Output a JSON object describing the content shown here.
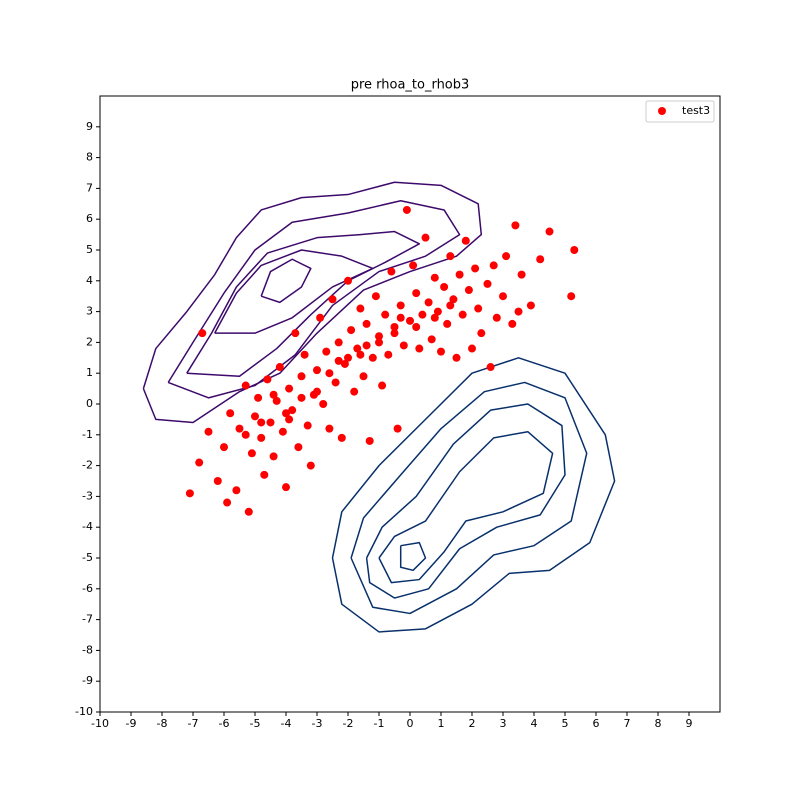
{
  "chart_data": {
    "type": "scatter",
    "title": "pre rhoa_to_rhob3",
    "xlim": [
      -10,
      10
    ],
    "ylim": [
      -10,
      10
    ],
    "xticks": [
      -10,
      -9,
      -8,
      -7,
      -6,
      -5,
      -4,
      -3,
      -2,
      -1,
      0,
      1,
      2,
      3,
      4,
      5,
      6,
      7,
      8,
      9
    ],
    "yticks": [
      -10,
      -9,
      -8,
      -7,
      -6,
      -5,
      -4,
      -3,
      -2,
      -1,
      0,
      1,
      2,
      3,
      4,
      5,
      6,
      7,
      8,
      9
    ],
    "legend": "upper right",
    "series": [
      {
        "name": "test3",
        "color": "#ff0000",
        "points": [
          [
            -7.1,
            -2.9
          ],
          [
            -6.8,
            -1.9
          ],
          [
            -6.5,
            -0.9
          ],
          [
            -6.2,
            -2.5
          ],
          [
            -6.0,
            -1.4
          ],
          [
            -5.9,
            -3.2
          ],
          [
            -5.8,
            -0.3
          ],
          [
            -5.6,
            -2.8
          ],
          [
            -5.5,
            -0.8
          ],
          [
            -5.3,
            0.6
          ],
          [
            -5.2,
            -3.5
          ],
          [
            -5.1,
            -1.6
          ],
          [
            -5.0,
            -0.4
          ],
          [
            -4.9,
            0.2
          ],
          [
            -4.8,
            -1.1
          ],
          [
            -4.7,
            -2.3
          ],
          [
            -4.6,
            0.8
          ],
          [
            -4.5,
            -0.6
          ],
          [
            -4.4,
            -1.7
          ],
          [
            -4.3,
            0.1
          ],
          [
            -4.2,
            1.2
          ],
          [
            -4.1,
            -0.9
          ],
          [
            -4.0,
            -2.7
          ],
          [
            -3.9,
            0.5
          ],
          [
            -3.8,
            -0.2
          ],
          [
            -3.7,
            2.3
          ],
          [
            -3.6,
            -1.4
          ],
          [
            -3.5,
            0.9
          ],
          [
            -3.4,
            1.6
          ],
          [
            -3.3,
            -0.7
          ],
          [
            -3.2,
            -2.0
          ],
          [
            -3.1,
            0.3
          ],
          [
            -3.0,
            1.1
          ],
          [
            -2.9,
            2.8
          ],
          [
            -2.8,
            0.0
          ],
          [
            -2.7,
            1.7
          ],
          [
            -2.6,
            -0.8
          ],
          [
            -2.5,
            3.4
          ],
          [
            -2.4,
            0.7
          ],
          [
            -2.3,
            2.0
          ],
          [
            -2.2,
            -1.1
          ],
          [
            -2.1,
            1.3
          ],
          [
            -2.0,
            4.0
          ],
          [
            -1.9,
            2.4
          ],
          [
            -1.8,
            0.4
          ],
          [
            -1.7,
            1.8
          ],
          [
            -1.6,
            3.1
          ],
          [
            -1.5,
            0.9
          ],
          [
            -1.4,
            2.6
          ],
          [
            -1.3,
            -1.2
          ],
          [
            -1.2,
            1.5
          ],
          [
            -1.1,
            3.5
          ],
          [
            -1.0,
            2.2
          ],
          [
            -0.9,
            0.6
          ],
          [
            -0.8,
            2.9
          ],
          [
            -0.7,
            1.6
          ],
          [
            -0.6,
            4.3
          ],
          [
            -0.5,
            2.5
          ],
          [
            -0.4,
            -0.8
          ],
          [
            -0.3,
            3.2
          ],
          [
            -0.2,
            1.9
          ],
          [
            -0.1,
            6.3
          ],
          [
            0.0,
            2.7
          ],
          [
            0.1,
            4.5
          ],
          [
            0.2,
            3.6
          ],
          [
            0.3,
            1.8
          ],
          [
            0.4,
            2.9
          ],
          [
            0.5,
            5.4
          ],
          [
            0.6,
            3.3
          ],
          [
            0.7,
            2.1
          ],
          [
            0.8,
            4.1
          ],
          [
            0.9,
            3.0
          ],
          [
            1.0,
            1.7
          ],
          [
            1.1,
            3.8
          ],
          [
            1.2,
            2.6
          ],
          [
            1.3,
            4.8
          ],
          [
            1.4,
            3.4
          ],
          [
            1.5,
            1.5
          ],
          [
            1.6,
            4.2
          ],
          [
            1.7,
            2.9
          ],
          [
            1.8,
            5.3
          ],
          [
            1.9,
            3.7
          ],
          [
            2.0,
            1.8
          ],
          [
            2.1,
            4.4
          ],
          [
            2.2,
            3.1
          ],
          [
            2.3,
            2.3
          ],
          [
            2.5,
            3.9
          ],
          [
            2.6,
            1.2
          ],
          [
            2.7,
            4.5
          ],
          [
            2.8,
            2.8
          ],
          [
            3.0,
            3.5
          ],
          [
            3.1,
            4.8
          ],
          [
            3.3,
            2.6
          ],
          [
            3.4,
            5.8
          ],
          [
            3.5,
            3.0
          ],
          [
            3.6,
            4.2
          ],
          [
            3.9,
            3.2
          ],
          [
            4.2,
            4.7
          ],
          [
            4.5,
            5.6
          ],
          [
            5.2,
            3.5
          ],
          [
            5.3,
            5.0
          ],
          [
            -6.7,
            2.3
          ],
          [
            -4.0,
            -0.3
          ],
          [
            -3.9,
            -0.5
          ],
          [
            -4.4,
            0.3
          ],
          [
            -3.5,
            0.2
          ],
          [
            -2.6,
            1.0
          ],
          [
            -2.3,
            1.4
          ],
          [
            -1.6,
            1.6
          ],
          [
            -1.0,
            2.0
          ],
          [
            -0.5,
            2.3
          ],
          [
            0.2,
            2.5
          ],
          [
            0.8,
            2.8
          ],
          [
            1.3,
            3.2
          ],
          [
            -5.3,
            -1.0
          ],
          [
            -4.8,
            -0.6
          ],
          [
            -3.0,
            0.4
          ],
          [
            -2.0,
            1.5
          ],
          [
            -1.4,
            1.9
          ],
          [
            -0.3,
            2.8
          ]
        ]
      }
    ],
    "contours": [
      {
        "color": "#3d0a6b",
        "paths": [
          [
            [
              -8.6,
              0.5
            ],
            [
              -8.2,
              1.8
            ],
            [
              -7.2,
              3
            ],
            [
              -6.3,
              4.2
            ],
            [
              -5.6,
              5.4
            ],
            [
              -4.8,
              6.3
            ],
            [
              -3.5,
              6.7
            ],
            [
              -2,
              6.8
            ],
            [
              -0.5,
              7.2
            ],
            [
              1,
              7.1
            ],
            [
              2.2,
              6.5
            ],
            [
              2.3,
              5.5
            ],
            [
              1.5,
              4.8
            ],
            [
              0,
              4.3
            ],
            [
              -1.5,
              3.7
            ],
            [
              -3,
              2.3
            ],
            [
              -4.2,
              1
            ],
            [
              -5.5,
              0.4
            ],
            [
              -7,
              -0.6
            ],
            [
              -8.2,
              -0.5
            ],
            [
              -8.6,
              0.5
            ]
          ],
          [
            [
              -7.8,
              0.7
            ],
            [
              -7,
              2
            ],
            [
              -6,
              3.6
            ],
            [
              -5,
              5
            ],
            [
              -3.8,
              5.9
            ],
            [
              -2,
              6.2
            ],
            [
              -0.3,
              6.6
            ],
            [
              1.1,
              6.3
            ],
            [
              1.6,
              5.5
            ],
            [
              0.5,
              4.8
            ],
            [
              -1,
              4.3
            ],
            [
              -2.5,
              3.2
            ],
            [
              -3.7,
              1.6
            ],
            [
              -5,
              0.6
            ],
            [
              -6.5,
              0.2
            ],
            [
              -7.8,
              0.7
            ]
          ],
          [
            [
              -7.2,
              1
            ],
            [
              -6.4,
              2.3
            ],
            [
              -5.6,
              3.8
            ],
            [
              -4.6,
              4.9
            ],
            [
              -3,
              5.4
            ],
            [
              -1.6,
              5.5
            ],
            [
              -0.5,
              5.6
            ],
            [
              0.3,
              5.2
            ],
            [
              -0.8,
              4.6
            ],
            [
              -2,
              4
            ],
            [
              -3.2,
              2.9
            ],
            [
              -4.3,
              1.8
            ],
            [
              -5.5,
              0.9
            ],
            [
              -7.2,
              1
            ]
          ],
          [
            [
              -6.3,
              2.3
            ],
            [
              -5.6,
              3.6
            ],
            [
              -4.8,
              4.5
            ],
            [
              -3.5,
              5
            ],
            [
              -2.2,
              4.8
            ],
            [
              -1.2,
              4.4
            ],
            [
              -2.5,
              3.8
            ],
            [
              -3.8,
              2.8
            ],
            [
              -5,
              2.3
            ],
            [
              -6.3,
              2.3
            ]
          ],
          [
            [
              -4.8,
              3.5
            ],
            [
              -4.5,
              4.3
            ],
            [
              -3.8,
              4.7
            ],
            [
              -3.2,
              4.4
            ],
            [
              -3.5,
              3.8
            ],
            [
              -4.2,
              3.3
            ],
            [
              -4.8,
              3.5
            ]
          ]
        ]
      },
      {
        "color": "#08306b",
        "paths": [
          [
            [
              -2.5,
              -5
            ],
            [
              -2.2,
              -3.5
            ],
            [
              -1,
              -2
            ],
            [
              0.5,
              -0.5
            ],
            [
              2,
              1
            ],
            [
              3.5,
              1.5
            ],
            [
              5,
              1
            ],
            [
              6.3,
              -1
            ],
            [
              6.6,
              -2.5
            ],
            [
              5.8,
              -4.5
            ],
            [
              4.5,
              -5.4
            ],
            [
              3.2,
              -5.5
            ],
            [
              2,
              -6.5
            ],
            [
              0.5,
              -7.3
            ],
            [
              -1,
              -7.4
            ],
            [
              -2.2,
              -6.5
            ],
            [
              -2.5,
              -5
            ]
          ],
          [
            [
              -1.9,
              -5
            ],
            [
              -1.5,
              -3.7
            ],
            [
              -0.3,
              -2.3
            ],
            [
              1,
              -0.8
            ],
            [
              2.4,
              0.4
            ],
            [
              3.7,
              0.7
            ],
            [
              5,
              0.2
            ],
            [
              5.7,
              -1.6
            ],
            [
              5.2,
              -3.8
            ],
            [
              4,
              -4.6
            ],
            [
              2.7,
              -4.9
            ],
            [
              1.5,
              -6
            ],
            [
              0,
              -6.8
            ],
            [
              -1.2,
              -6.6
            ],
            [
              -1.9,
              -5
            ]
          ],
          [
            [
              -1.4,
              -5
            ],
            [
              -0.9,
              -4
            ],
            [
              0.2,
              -3
            ],
            [
              1.4,
              -1.3
            ],
            [
              2.6,
              -0.2
            ],
            [
              3.8,
              0
            ],
            [
              4.9,
              -0.7
            ],
            [
              5,
              -2.3
            ],
            [
              4.2,
              -3.6
            ],
            [
              2.8,
              -4
            ],
            [
              1.6,
              -4.7
            ],
            [
              0.6,
              -6
            ],
            [
              -0.5,
              -6.3
            ],
            [
              -1.3,
              -5.8
            ],
            [
              -1.4,
              -5
            ]
          ],
          [
            [
              -1,
              -5
            ],
            [
              -0.5,
              -4.3
            ],
            [
              0.5,
              -3.8
            ],
            [
              1.6,
              -2.2
            ],
            [
              2.7,
              -1.1
            ],
            [
              3.8,
              -0.9
            ],
            [
              4.6,
              -1.6
            ],
            [
              4.3,
              -2.9
            ],
            [
              3,
              -3.5
            ],
            [
              1.8,
              -3.8
            ],
            [
              1.1,
              -4.8
            ],
            [
              0.3,
              -5.7
            ],
            [
              -0.6,
              -5.8
            ],
            [
              -1,
              -5
            ]
          ],
          [
            [
              -0.3,
              -4.6
            ],
            [
              0.3,
              -4.5
            ],
            [
              0.5,
              -5
            ],
            [
              0.1,
              -5.4
            ],
            [
              -0.3,
              -5.3
            ],
            [
              -0.3,
              -4.6
            ]
          ]
        ]
      }
    ]
  }
}
